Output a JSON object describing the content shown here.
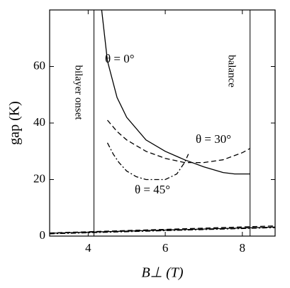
{
  "chart_data": {
    "type": "line",
    "x_label": "B⊥ (T)",
    "y_label": "gap (K)",
    "xlim": [
      3,
      8.85
    ],
    "ylim": [
      0,
      80
    ],
    "xticks": [
      4,
      6,
      8
    ],
    "yticks": [
      0,
      20,
      40,
      60
    ],
    "series": [
      {
        "color": "#000000",
        "dash": "solid",
        "x": [
          4.35,
          4.5,
          4.75,
          5,
          5.5,
          6,
          6.5,
          7,
          7.5,
          7.8,
          8.2
        ],
        "values": [
          80,
          62,
          49,
          42,
          34,
          30,
          27,
          24.5,
          22.5,
          22,
          22
        ]
      },
      {
        "color": "#000000",
        "dash": "dashed",
        "x": [
          4.5,
          4.75,
          5,
          5.5,
          6,
          6.5,
          7,
          7.5,
          8,
          8.2
        ],
        "values": [
          41,
          37,
          34,
          30,
          27.5,
          26,
          26,
          27,
          29.5,
          31
        ]
      },
      {
        "color": "#000000",
        "dash": "dashdot",
        "x": [
          4.5,
          4.65,
          4.8,
          5,
          5.25,
          5.5,
          6,
          6.3,
          6.5,
          6.6
        ],
        "values": [
          33,
          29,
          26,
          23,
          21,
          20,
          20,
          22,
          26,
          29
        ]
      },
      {
        "color": "#000000",
        "dash": "solid",
        "x": [
          3,
          8.85
        ],
        "values": [
          1,
          3.2
        ]
      },
      {
        "color": "#000000",
        "dash": "dashed",
        "x": [
          3,
          8.85
        ],
        "values": [
          1.1,
          3.6
        ]
      },
      {
        "color": "#000000",
        "dash": "dashdot",
        "x": [
          3,
          8.85
        ],
        "values": [
          0.8,
          3.0
        ]
      }
    ],
    "reference_lines": [
      {
        "x": 4.15,
        "label": "bilayer onset"
      },
      {
        "x": 8.2,
        "label": "balance"
      }
    ],
    "annotations": [
      {
        "text": "θ = 0°"
      },
      {
        "text": "θ = 30°"
      },
      {
        "text": "θ = 45°"
      }
    ]
  }
}
